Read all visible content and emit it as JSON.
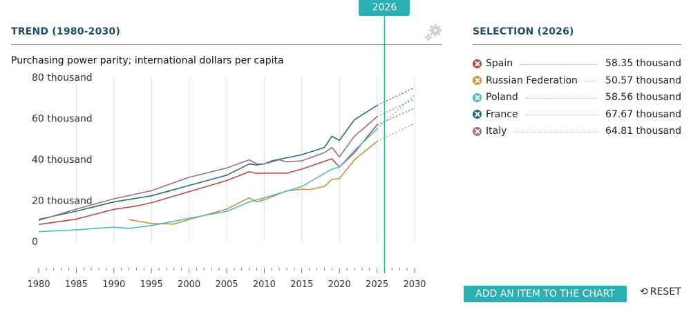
{
  "header": {
    "trend_title": "TREND (1980-2030)",
    "selection_title": "SELECTION (2026)",
    "subtitle": "Purchasing power parity; international dollars per capita",
    "selected_year": "2026"
  },
  "buttons": {
    "add_item": "ADD AN ITEM TO THE CHART",
    "reset": "RESET"
  },
  "legend": [
    {
      "name": "Spain",
      "value": "58.35 thousand",
      "color": "#b94a48"
    },
    {
      "name": "Russian Federation",
      "value": "50.57 thousand",
      "color": "#c9923c"
    },
    {
      "name": "Poland",
      "value": "58.56 thousand",
      "color": "#4bbac6"
    },
    {
      "name": "France",
      "value": "67.67 thousand",
      "color": "#236d7c"
    },
    {
      "name": "Italy",
      "value": "64.81 thousand",
      "color": "#9a6e8f"
    }
  ],
  "chart_data": {
    "type": "line",
    "title": "TREND (1980-2030)",
    "ylabel": "Purchasing power parity; international dollars per capita",
    "xlim": [
      1980,
      2030
    ],
    "ylim": [
      0,
      80000
    ],
    "yticks": [
      0,
      20000,
      40000,
      60000,
      80000
    ],
    "ytick_labels": [
      "0",
      "20 thousand",
      "40 thousand",
      "60 thousand",
      "80 thousand"
    ],
    "xticks": [
      1980,
      1985,
      1990,
      1995,
      2000,
      2005,
      2010,
      2015,
      2020,
      2025,
      2030
    ],
    "selected_year": 2026,
    "actual_end": 2025,
    "series": [
      {
        "name": "Spain",
        "color": "#b94a48",
        "points": [
          [
            1980,
            8300
          ],
          [
            1985,
            10900
          ],
          [
            1990,
            15700
          ],
          [
            1993,
            17300
          ],
          [
            1995,
            18900
          ],
          [
            2000,
            24300
          ],
          [
            2005,
            29700
          ],
          [
            2008,
            34000
          ],
          [
            2009,
            33200
          ],
          [
            2010,
            33300
          ],
          [
            2013,
            33300
          ],
          [
            2015,
            35300
          ],
          [
            2019,
            40300
          ],
          [
            2020,
            36300
          ],
          [
            2022,
            43300
          ],
          [
            2025,
            56800
          ],
          [
            2030,
            65000
          ]
        ]
      },
      {
        "name": "Russian Federation",
        "color": "#c9923c",
        "points": [
          [
            1992,
            10700
          ],
          [
            1995,
            8800
          ],
          [
            1998,
            8500
          ],
          [
            2000,
            10700
          ],
          [
            2005,
            15800
          ],
          [
            2008,
            21300
          ],
          [
            2009,
            19300
          ],
          [
            2010,
            20300
          ],
          [
            2013,
            24700
          ],
          [
            2015,
            25500
          ],
          [
            2016,
            25300
          ],
          [
            2018,
            26800
          ],
          [
            2019,
            30300
          ],
          [
            2020,
            30700
          ],
          [
            2022,
            39800
          ],
          [
            2025,
            48800
          ],
          [
            2030,
            57500
          ]
        ]
      },
      {
        "name": "Poland",
        "color": "#4bbac6",
        "points": [
          [
            1980,
            4800
          ],
          [
            1985,
            5700
          ],
          [
            1990,
            7000
          ],
          [
            1992,
            6400
          ],
          [
            1995,
            7800
          ],
          [
            2000,
            11300
          ],
          [
            2005,
            14700
          ],
          [
            2008,
            19300
          ],
          [
            2010,
            21300
          ],
          [
            2015,
            26800
          ],
          [
            2019,
            35300
          ],
          [
            2020,
            36300
          ],
          [
            2022,
            44300
          ],
          [
            2025,
            54800
          ],
          [
            2030,
            71500
          ]
        ]
      },
      {
        "name": "France",
        "color": "#236d7c",
        "points": [
          [
            1980,
            10800
          ],
          [
            1985,
            14800
          ],
          [
            1990,
            19300
          ],
          [
            1995,
            22300
          ],
          [
            2000,
            27300
          ],
          [
            2005,
            32300
          ],
          [
            2008,
            37800
          ],
          [
            2009,
            37300
          ],
          [
            2010,
            37800
          ],
          [
            2011,
            39300
          ],
          [
            2015,
            42300
          ],
          [
            2018,
            45800
          ],
          [
            2019,
            51300
          ],
          [
            2020,
            49300
          ],
          [
            2022,
            59300
          ],
          [
            2025,
            66300
          ],
          [
            2030,
            75000
          ]
        ]
      },
      {
        "name": "Italy",
        "color": "#9a6e8f",
        "points": [
          [
            1980,
            10300
          ],
          [
            1985,
            15800
          ],
          [
            1990,
            20800
          ],
          [
            1995,
            24800
          ],
          [
            2000,
            31300
          ],
          [
            2005,
            35800
          ],
          [
            2008,
            39800
          ],
          [
            2009,
            37800
          ],
          [
            2010,
            37800
          ],
          [
            2012,
            39800
          ],
          [
            2013,
            38800
          ],
          [
            2015,
            39300
          ],
          [
            2018,
            43300
          ],
          [
            2019,
            45800
          ],
          [
            2020,
            41300
          ],
          [
            2022,
            51300
          ],
          [
            2025,
            60800
          ],
          [
            2030,
            69500
          ]
        ]
      }
    ]
  }
}
